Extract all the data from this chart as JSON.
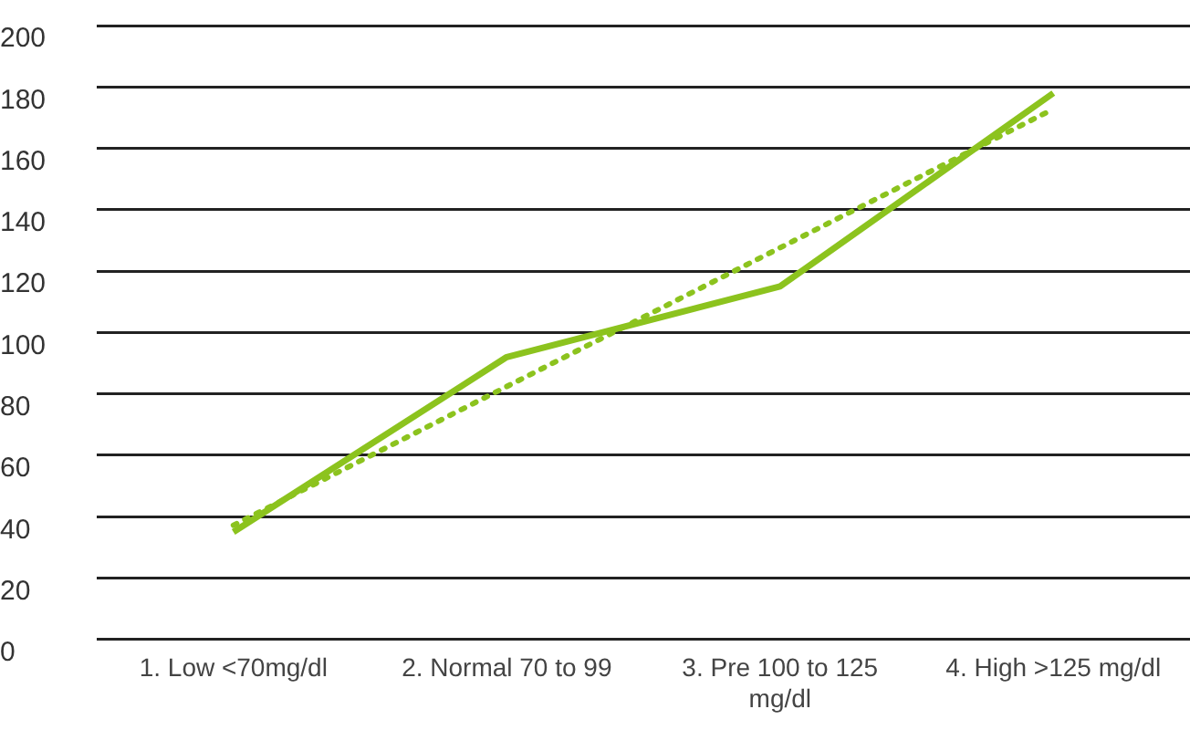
{
  "chart_data": {
    "type": "line",
    "categories": [
      "1. Low <70mg/dl",
      "2. Normal 70 to 99",
      "3. Pre 100 to 125 mg/dl",
      "4. High >125 mg/dl"
    ],
    "series": [
      {
        "color": "#8cc31e",
        "values": [
          35,
          92,
          115,
          178
        ],
        "line_style": "solid"
      },
      {
        "color": "#8cc31e",
        "values": [
          37.2,
          82.4,
          127.6,
          172.8
        ],
        "line_style": "dotted"
      }
    ],
    "ylim": [
      0,
      200
    ],
    "yticks": [
      0,
      20,
      40,
      60,
      80,
      100,
      120,
      140,
      160,
      180,
      200
    ],
    "grid": "y",
    "legend": false,
    "marker": "none"
  }
}
